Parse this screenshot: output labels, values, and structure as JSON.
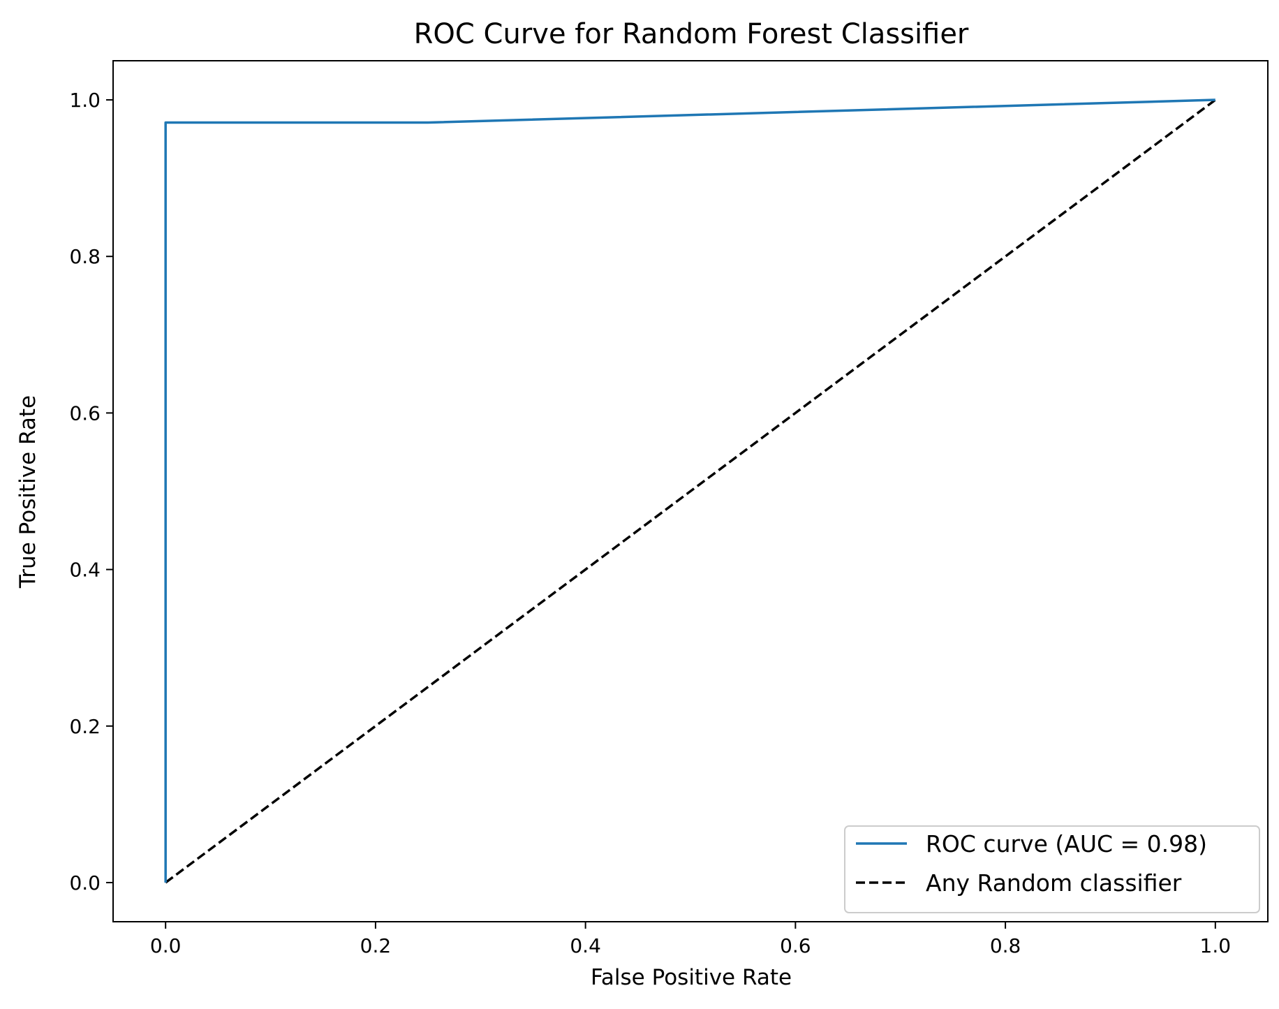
{
  "chart_data": {
    "type": "line",
    "title": "ROC Curve for Random Forest Classifier",
    "xlabel": "False Positive Rate",
    "ylabel": "True Positive Rate",
    "xlim": [
      -0.05,
      1.05
    ],
    "ylim": [
      -0.05,
      1.05
    ],
    "xticks": [
      0.0,
      0.2,
      0.4,
      0.6,
      0.8,
      1.0
    ],
    "xtick_labels": [
      "0.0",
      "0.2",
      "0.4",
      "0.6",
      "0.8",
      "1.0"
    ],
    "yticks": [
      0.0,
      0.2,
      0.4,
      0.6,
      0.8,
      1.0
    ],
    "ytick_labels": [
      "0.0",
      "0.2",
      "0.4",
      "0.6",
      "0.8",
      "1.0"
    ],
    "grid": false,
    "legend_position": "lower-right",
    "series": [
      {
        "name": "ROC curve (AUC = 0.98)",
        "color": "#1f77b4",
        "dash": "solid",
        "x": [
          0.0,
          0.0,
          0.25,
          1.0
        ],
        "y": [
          0.0,
          0.971,
          0.971,
          1.0
        ]
      },
      {
        "name": "Any Random classifier",
        "color": "#000000",
        "dash": "dashed",
        "x": [
          0.0,
          1.0
        ],
        "y": [
          0.0,
          1.0
        ]
      }
    ]
  }
}
